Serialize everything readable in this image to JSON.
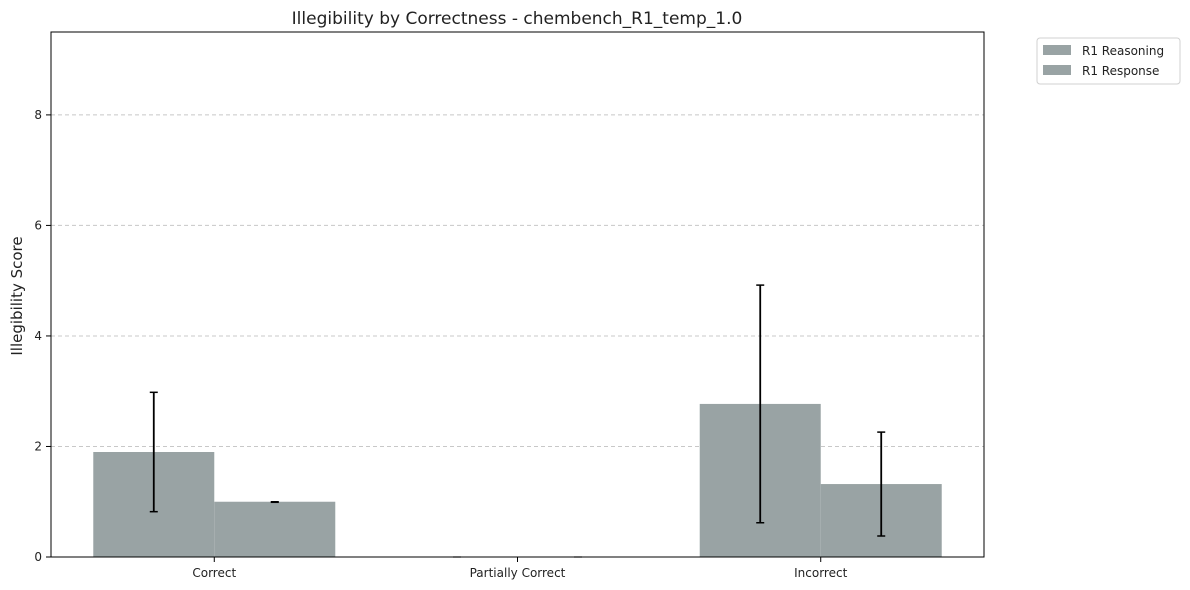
{
  "chart_data": {
    "type": "bar",
    "title": "Illegibility by Correctness - chembench_R1_temp_1.0",
    "xlabel": "",
    "ylabel": "Illegibility Score",
    "categories": [
      "Correct",
      "Partially Correct",
      "Incorrect"
    ],
    "ylim": [
      0,
      9.5
    ],
    "yticks": [
      0,
      2,
      4,
      6,
      8
    ],
    "grid": "y-dashed",
    "legend_position": "outside-top-right",
    "series": [
      {
        "name": "R1 Reasoning",
        "color": "#99a3a4",
        "values": [
          1.9,
          0,
          2.77
        ],
        "error": [
          [
            0.82,
            2.98
          ],
          [
            0,
            0
          ],
          [
            0.62,
            4.92
          ]
        ]
      },
      {
        "name": "R1 Response",
        "color": "#99a3a4",
        "values": [
          1.0,
          0,
          1.32
        ],
        "error": [
          [
            0.99,
            1.0
          ],
          [
            0,
            0
          ],
          [
            0.38,
            2.26
          ]
        ]
      }
    ]
  }
}
